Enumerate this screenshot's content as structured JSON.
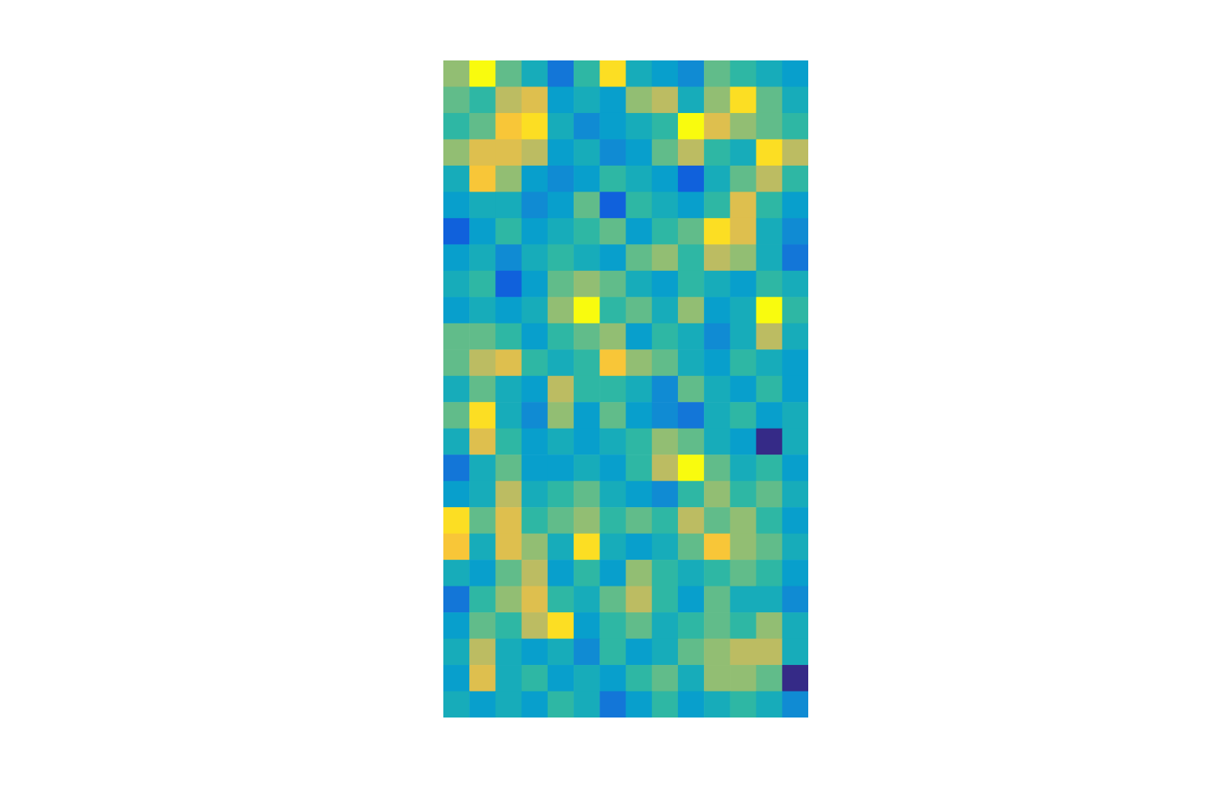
{
  "chart_data": {
    "type": "heatmap",
    "tick_labels": false,
    "cells": [
      [
        60,
        85,
        55,
        45,
        30,
        50,
        80,
        45,
        40,
        35,
        55,
        50,
        45,
        40
      ],
      [
        55,
        50,
        65,
        70,
        40,
        45,
        40,
        60,
        65,
        45,
        60,
        80,
        55,
        45
      ],
      [
        50,
        55,
        75,
        80,
        45,
        35,
        40,
        45,
        50,
        85,
        70,
        60,
        55,
        50
      ],
      [
        60,
        70,
        70,
        65,
        40,
        45,
        35,
        40,
        55,
        65,
        50,
        45,
        80,
        65
      ],
      [
        45,
        75,
        60,
        40,
        35,
        40,
        50,
        45,
        40,
        25,
        45,
        55,
        65,
        50
      ],
      [
        40,
        45,
        45,
        35,
        40,
        55,
        25,
        50,
        45,
        40,
        50,
        70,
        50,
        40
      ],
      [
        25,
        40,
        50,
        40,
        45,
        50,
        55,
        40,
        50,
        55,
        80,
        70,
        45,
        35
      ],
      [
        40,
        45,
        35,
        45,
        50,
        45,
        40,
        55,
        60,
        50,
        65,
        60,
        45,
        30
      ],
      [
        45,
        50,
        25,
        40,
        55,
        60,
        55,
        45,
        40,
        50,
        45,
        40,
        50,
        45
      ],
      [
        40,
        45,
        40,
        45,
        60,
        85,
        50,
        55,
        45,
        60,
        40,
        45,
        85,
        50
      ],
      [
        55,
        55,
        50,
        40,
        50,
        55,
        60,
        40,
        50,
        45,
        35,
        45,
        65,
        45
      ],
      [
        55,
        65,
        70,
        50,
        45,
        50,
        75,
        60,
        55,
        45,
        40,
        50,
        45,
        40
      ],
      [
        45,
        55,
        45,
        40,
        65,
        50,
        50,
        45,
        35,
        55,
        45,
        40,
        50,
        40
      ],
      [
        55,
        80,
        45,
        35,
        60,
        40,
        55,
        40,
        35,
        30,
        45,
        50,
        40,
        45
      ],
      [
        45,
        70,
        50,
        40,
        45,
        40,
        45,
        50,
        60,
        55,
        45,
        40,
        15,
        45
      ],
      [
        30,
        45,
        55,
        40,
        40,
        45,
        40,
        50,
        65,
        85,
        55,
        45,
        50,
        40
      ],
      [
        40,
        45,
        65,
        45,
        50,
        55,
        45,
        40,
        35,
        50,
        60,
        50,
        55,
        45
      ],
      [
        80,
        55,
        70,
        50,
        55,
        60,
        50,
        55,
        50,
        65,
        55,
        60,
        50,
        40
      ],
      [
        75,
        45,
        70,
        60,
        45,
        80,
        45,
        40,
        45,
        55,
        75,
        60,
        55,
        45
      ],
      [
        45,
        40,
        55,
        65,
        40,
        50,
        40,
        60,
        50,
        45,
        50,
        55,
        50,
        40
      ],
      [
        30,
        50,
        60,
        70,
        50,
        45,
        55,
        65,
        50,
        40,
        55,
        45,
        45,
        35
      ],
      [
        40,
        55,
        50,
        65,
        80,
        40,
        50,
        55,
        45,
        50,
        55,
        50,
        60,
        45
      ],
      [
        45,
        65,
        45,
        40,
        45,
        35,
        50,
        40,
        45,
        55,
        60,
        65,
        65,
        45
      ],
      [
        40,
        70,
        45,
        50,
        40,
        45,
        40,
        50,
        55,
        45,
        60,
        60,
        55,
        15
      ],
      [
        45,
        40,
        45,
        40,
        50,
        45,
        30,
        40,
        50,
        40,
        45,
        50,
        45,
        35
      ]
    ]
  }
}
